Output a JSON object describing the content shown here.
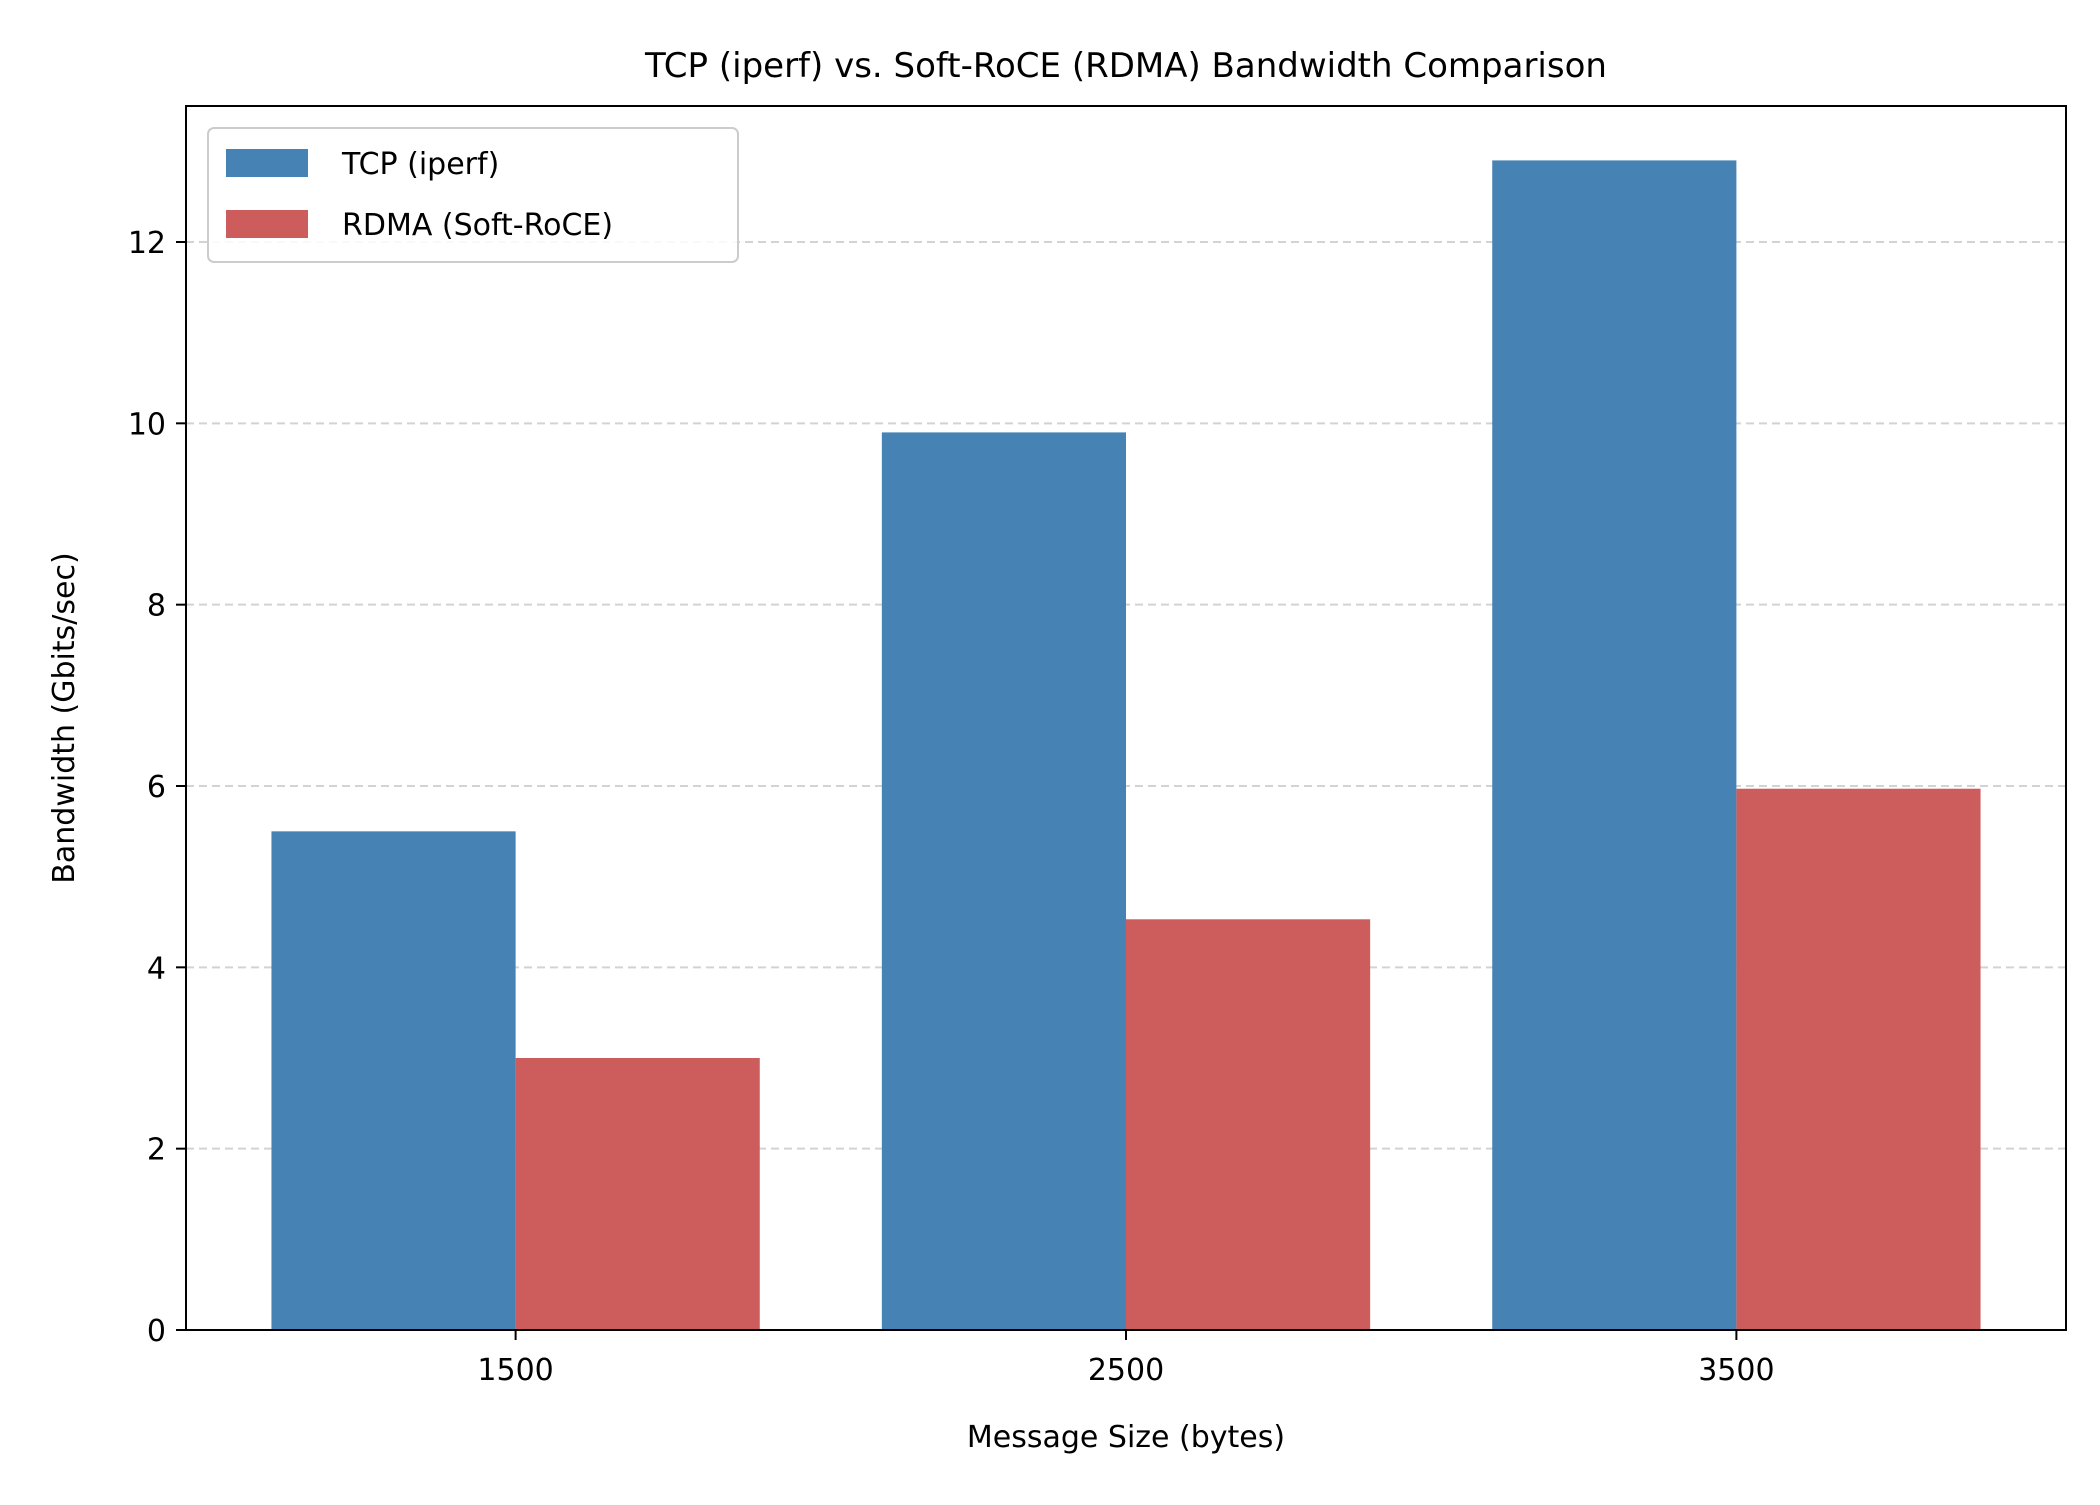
{
  "chart_data": {
    "type": "bar",
    "title": "TCP (iperf) vs. Soft-RoCE (RDMA) Bandwidth Comparison",
    "xlabel": "Message Size (bytes)",
    "ylabel": "Bandwidth (Gbits/sec)",
    "categories": [
      "1500",
      "2500",
      "3500"
    ],
    "series": [
      {
        "name": "TCP (iperf)",
        "values": [
          5.5,
          9.9,
          12.9
        ],
        "color": "#4682b4"
      },
      {
        "name": "RDMA (Soft-RoCE)",
        "values": [
          3.0,
          4.53,
          5.97
        ],
        "color": "#cd5c5c"
      }
    ],
    "ylim": [
      0,
      13.5
    ],
    "yticks": [
      0,
      2,
      4,
      6,
      8,
      10,
      12
    ],
    "grid": "y-dashed",
    "legend_position": "top-left"
  }
}
